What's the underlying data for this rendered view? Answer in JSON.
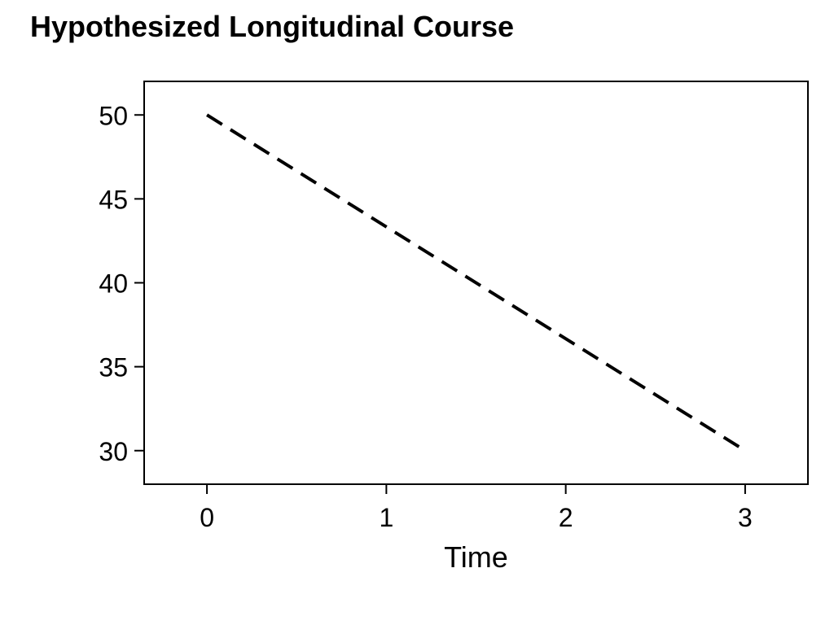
{
  "chart_data": {
    "type": "line",
    "title": "Hypothesized Longitudinal Course",
    "xlabel": "Time",
    "ylabel": "",
    "xlim": [
      -0.35,
      3.35
    ],
    "ylim": [
      28,
      52
    ],
    "x_ticks": [
      0,
      1,
      2,
      3
    ],
    "y_ticks": [
      30,
      35,
      40,
      45,
      50
    ],
    "grid": false,
    "series": [
      {
        "x": [
          0,
          3
        ],
        "y": [
          50,
          30
        ],
        "line_style": "dashed",
        "color": "#000000"
      }
    ]
  }
}
